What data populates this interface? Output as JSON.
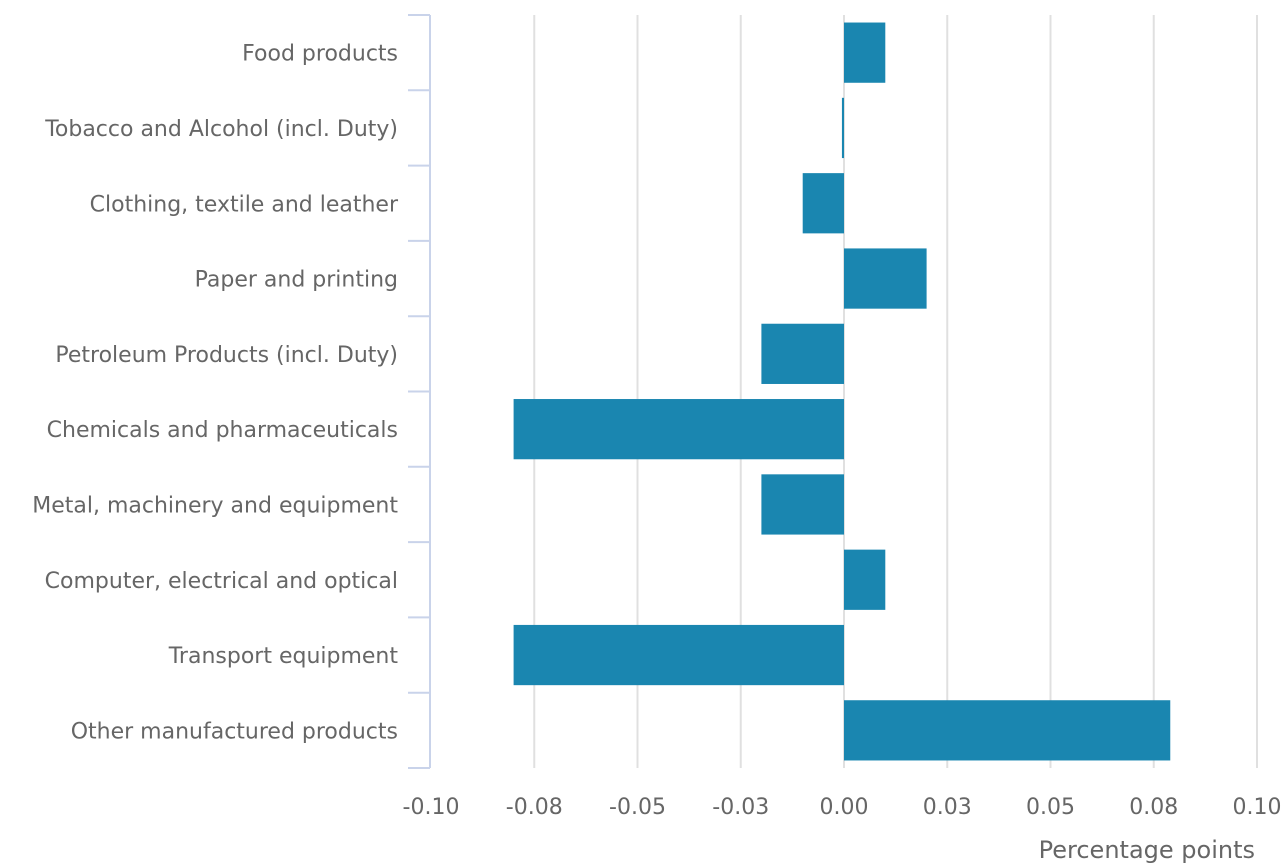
{
  "chart_data": {
    "type": "bar",
    "orientation": "horizontal",
    "title": "",
    "xlabel": "Percentage points",
    "ylabel": "",
    "categories": [
      "Food products",
      "Tobacco and Alcohol (incl. Duty)",
      "Clothing, textile and leather",
      "Paper and printing",
      "Petroleum Products (incl. Duty)",
      "Chemicals and pharmaceuticals",
      "Metal, machinery and equipment",
      "Computer, electrical and optical",
      "Transport equipment",
      "Other manufactured products"
    ],
    "values": [
      0.01,
      -0.0005,
      -0.01,
      0.02,
      -0.02,
      -0.08,
      -0.02,
      0.01,
      -0.08,
      0.079
    ],
    "xlim": [
      -0.1,
      0.1
    ],
    "x_ticks": [
      "-0.10",
      "-0.08",
      "-0.05",
      "-0.03",
      "0.00",
      "0.03",
      "0.05",
      "0.08",
      "0.10"
    ],
    "grid": true,
    "bar_color": "#1a86b0",
    "legend": "none"
  }
}
